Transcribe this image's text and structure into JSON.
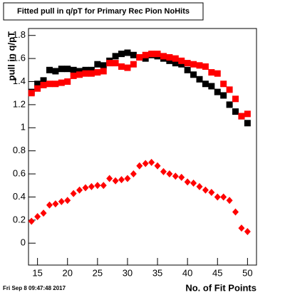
{
  "chart_data": {
    "type": "scatter",
    "title": "Fitted pull in q/pT for Primary Rec Pion NoHits",
    "x_label": "No. of Fit Points",
    "y_label": "pull in q/pT",
    "footer": "Fri Sep  8 09:47:48 2017",
    "x": [
      14,
      15,
      16,
      17,
      18,
      19,
      20,
      21,
      22,
      23,
      24,
      25,
      26,
      27,
      28,
      29,
      30,
      31,
      32,
      33,
      34,
      35,
      36,
      37,
      38,
      39,
      40,
      41,
      42,
      43,
      44,
      45,
      46,
      47,
      48,
      49,
      50
    ],
    "series": [
      {
        "color": "#000000",
        "marker": "square",
        "values": [
          1.31,
          1.38,
          1.41,
          1.5,
          1.49,
          1.51,
          1.51,
          1.5,
          1.49,
          1.5,
          1.5,
          1.55,
          1.54,
          1.58,
          1.62,
          1.64,
          1.65,
          1.63,
          1.61,
          1.6,
          1.63,
          1.62,
          1.6,
          1.58,
          1.56,
          1.55,
          1.5,
          1.46,
          1.42,
          1.38,
          1.36,
          1.31,
          1.28,
          1.2,
          1.14,
          1.1,
          1.04
        ]
      },
      {
        "color": "#ff0000",
        "marker": "square",
        "values": [
          1.3,
          1.34,
          1.37,
          1.38,
          1.38,
          1.39,
          1.4,
          1.45,
          1.46,
          1.47,
          1.47,
          1.48,
          1.49,
          1.56,
          1.56,
          1.53,
          1.52,
          1.55,
          1.61,
          1.63,
          1.64,
          1.64,
          1.62,
          1.61,
          1.6,
          1.58,
          1.56,
          1.55,
          1.54,
          1.53,
          1.48,
          1.47,
          1.38,
          1.33,
          1.25,
          1.1,
          1.12
        ]
      },
      {
        "color": "#ff0000",
        "marker": "diamond",
        "values": [
          0.19,
          0.23,
          0.26,
          0.33,
          0.34,
          0.36,
          0.37,
          0.43,
          0.46,
          0.48,
          0.49,
          0.5,
          0.5,
          0.56,
          0.54,
          0.55,
          0.56,
          0.6,
          0.67,
          0.69,
          0.7,
          0.67,
          0.62,
          0.6,
          0.58,
          0.57,
          0.53,
          0.52,
          0.49,
          0.46,
          0.44,
          0.4,
          0.4,
          0.37,
          0.27,
          0.13,
          0.1
        ]
      }
    ],
    "xlim": [
      13.5,
      51.5
    ],
    "xticks": [
      15,
      20,
      25,
      30,
      35,
      40,
      45,
      50
    ],
    "ylim": [
      -0.19,
      1.86
    ],
    "yticks": [
      0,
      0.2,
      0.4,
      0.6,
      0.8,
      1,
      1.2,
      1.4,
      1.6,
      1.8
    ],
    "grid": false
  }
}
